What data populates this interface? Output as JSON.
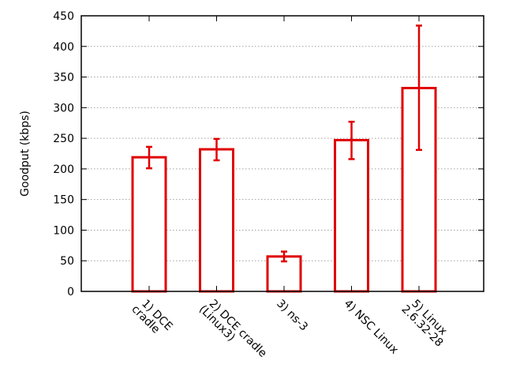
{
  "chart_data": {
    "type": "bar",
    "title": "",
    "xlabel": "",
    "ylabel": "Goodput (kbps)",
    "ylim": [
      0,
      450
    ],
    "yticks": [
      0,
      50,
      100,
      150,
      200,
      250,
      300,
      350,
      400,
      450
    ],
    "grid": "horizontal dotted",
    "legend": "none",
    "categories": [
      [
        "1) DCE",
        "cradle"
      ],
      [
        "2) DCE cradle",
        "(Linux3)"
      ],
      [
        "3) ns-3"
      ],
      [
        "4) NSC Linux"
      ],
      [
        "5) Linux",
        "2.6.32-28"
      ]
    ],
    "values": [
      219,
      232,
      57,
      247,
      332
    ],
    "error_low": [
      201,
      214,
      49,
      216,
      231
    ],
    "error_high": [
      236,
      249,
      65,
      277,
      434
    ],
    "colors": {
      "bar": "#e00000",
      "fill": "#ffffff",
      "axis": "#000000",
      "grid": "#a0a0a0"
    }
  }
}
